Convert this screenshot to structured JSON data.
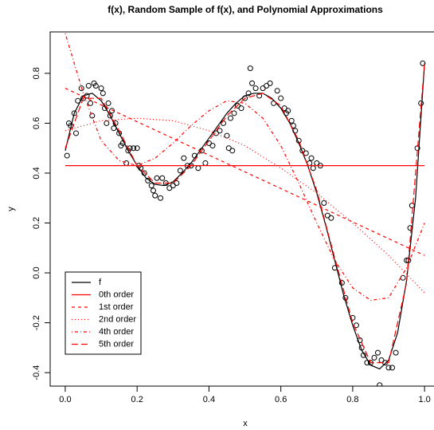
{
  "chart_data": {
    "type": "line",
    "title": "f(x), Random Sample of f(x), and Polynomial Approximations",
    "x_label": "x",
    "y_label": "y",
    "xlim": [
      -0.042,
      1.044
    ],
    "ylim": [
      -0.454,
      0.966
    ],
    "xticks": [
      {
        "value": 0,
        "label": "0.0"
      },
      0.2,
      0.4,
      0.6,
      0.8,
      {
        "value": 1,
        "label": "1.0"
      }
    ],
    "yticks": [
      -0.4,
      -0.2,
      {
        "value": 0,
        "label": "0.0"
      },
      0.2,
      0.4,
      0.6,
      0.8
    ],
    "legend": "bottom-left",
    "scatter": {
      "color": "#000000",
      "x": [
        0.005,
        0.01,
        0.015,
        0.025,
        0.03,
        0.035,
        0.045,
        0.05,
        0.06,
        0.065,
        0.07,
        0.075,
        0.08,
        0.085,
        0.1,
        0.105,
        0.11,
        0.115,
        0.12,
        0.125,
        0.13,
        0.135,
        0.14,
        0.15,
        0.155,
        0.16,
        0.17,
        0.175,
        0.18,
        0.19,
        0.2,
        0.205,
        0.21,
        0.22,
        0.23,
        0.24,
        0.245,
        0.25,
        0.255,
        0.265,
        0.27,
        0.28,
        0.29,
        0.3,
        0.31,
        0.32,
        0.33,
        0.34,
        0.35,
        0.36,
        0.37,
        0.38,
        0.39,
        0.4,
        0.41,
        0.42,
        0.43,
        0.44,
        0.45,
        0.455,
        0.46,
        0.465,
        0.47,
        0.48,
        0.49,
        0.5,
        0.51,
        0.515,
        0.52,
        0.53,
        0.54,
        0.55,
        0.56,
        0.57,
        0.58,
        0.59,
        0.6,
        0.61,
        0.615,
        0.62,
        0.63,
        0.635,
        0.64,
        0.65,
        0.66,
        0.67,
        0.68,
        0.685,
        0.69,
        0.7,
        0.71,
        0.72,
        0.73,
        0.74,
        0.75,
        0.77,
        0.78,
        0.8,
        0.81,
        0.82,
        0.825,
        0.83,
        0.84,
        0.85,
        0.86,
        0.87,
        0.875,
        0.88,
        0.89,
        0.9,
        0.91,
        0.92,
        0.94,
        0.95,
        0.955,
        0.96,
        0.965,
        0.98,
        0.99,
        0.995
      ],
      "values": [
        0.47,
        0.6,
        0.59,
        0.64,
        0.56,
        0.69,
        0.74,
        0.7,
        0.71,
        0.75,
        0.68,
        0.63,
        0.76,
        0.75,
        0.74,
        0.72,
        0.66,
        0.6,
        0.68,
        0.63,
        0.65,
        0.58,
        0.6,
        0.56,
        0.51,
        0.52,
        0.44,
        0.49,
        0.5,
        0.5,
        0.5,
        0.43,
        0.42,
        0.4,
        0.37,
        0.35,
        0.33,
        0.31,
        0.38,
        0.3,
        0.38,
        0.36,
        0.34,
        0.35,
        0.36,
        0.41,
        0.46,
        0.43,
        0.43,
        0.47,
        0.42,
        0.49,
        0.44,
        0.52,
        0.51,
        0.56,
        0.57,
        0.6,
        0.55,
        0.5,
        0.62,
        0.49,
        0.64,
        0.67,
        0.66,
        0.7,
        0.72,
        0.82,
        0.76,
        0.74,
        0.71,
        0.74,
        0.75,
        0.76,
        0.68,
        0.73,
        0.7,
        0.66,
        0.64,
        0.65,
        0.61,
        0.59,
        0.57,
        0.53,
        0.49,
        0.48,
        0.44,
        0.46,
        0.42,
        0.44,
        0.43,
        0.28,
        0.23,
        0.22,
        0.02,
        -0.04,
        -0.1,
        -0.18,
        -0.21,
        -0.27,
        -0.3,
        -0.33,
        -0.36,
        -0.36,
        -0.34,
        -0.32,
        -0.45,
        -0.35,
        -0.36,
        -0.38,
        -0.38,
        -0.32,
        -0.02,
        0.05,
        0.05,
        0.18,
        0.27,
        0.5,
        0.68,
        0.84
      ]
    },
    "series": [
      {
        "name": "f",
        "color": "#000000",
        "dash": "solid",
        "x": [
          0,
          0.025,
          0.05,
          0.075,
          0.1,
          0.125,
          0.15,
          0.175,
          0.2,
          0.225,
          0.25,
          0.275,
          0.3,
          0.325,
          0.35,
          0.375,
          0.4,
          0.425,
          0.45,
          0.475,
          0.5,
          0.525,
          0.55,
          0.575,
          0.6,
          0.625,
          0.65,
          0.675,
          0.7,
          0.725,
          0.75,
          0.775,
          0.8,
          0.825,
          0.85,
          0.875,
          0.9,
          0.925,
          0.95,
          0.975,
          1.0
        ],
        "values": [
          0.49,
          0.64,
          0.71,
          0.72,
          0.69,
          0.63,
          0.56,
          0.49,
          0.43,
          0.38,
          0.355,
          0.35,
          0.365,
          0.4,
          0.44,
          0.49,
          0.54,
          0.59,
          0.64,
          0.68,
          0.71,
          0.72,
          0.72,
          0.7,
          0.66,
          0.6,
          0.52,
          0.43,
          0.32,
          0.19,
          0.05,
          -0.09,
          -0.21,
          -0.31,
          -0.37,
          -0.385,
          -0.35,
          -0.24,
          -0.03,
          0.3,
          0.84
        ]
      },
      {
        "name": "0th order",
        "color": "#ff0000",
        "dash": "solid",
        "x": [
          0,
          1
        ],
        "values": [
          0.43,
          0.43
        ]
      },
      {
        "name": "1st order",
        "color": "#ff0000",
        "dash": "dashed",
        "x": [
          0,
          1
        ],
        "values": [
          0.74,
          0.07
        ]
      },
      {
        "name": "2nd order",
        "color": "#ff0000",
        "dash": "dotted",
        "x": [
          0,
          0.1,
          0.2,
          0.3,
          0.4,
          0.5,
          0.6,
          0.7,
          0.8,
          0.9,
          1.0
        ],
        "values": [
          0.57,
          0.61,
          0.62,
          0.61,
          0.57,
          0.51,
          0.42,
          0.32,
          0.2,
          0.07,
          -0.08
        ]
      },
      {
        "name": "4th order",
        "color": "#ff0000",
        "dash": "dotdash",
        "x": [
          0,
          0.05,
          0.1,
          0.15,
          0.2,
          0.25,
          0.3,
          0.35,
          0.4,
          0.45,
          0.5,
          0.55,
          0.6,
          0.65,
          0.7,
          0.75,
          0.8,
          0.85,
          0.9,
          0.95,
          1.0
        ],
        "values": [
          0.96,
          0.72,
          0.53,
          0.45,
          0.43,
          0.46,
          0.52,
          0.59,
          0.65,
          0.69,
          0.68,
          0.62,
          0.51,
          0.36,
          0.2,
          0.05,
          -0.06,
          -0.11,
          -0.1,
          0.02,
          0.2
        ]
      },
      {
        "name": "5th order",
        "color": "#ff0000",
        "dash": "longdash",
        "x": [
          0,
          0.05,
          0.1,
          0.15,
          0.2,
          0.25,
          0.3,
          0.35,
          0.4,
          0.45,
          0.5,
          0.55,
          0.6,
          0.65,
          0.7,
          0.75,
          0.8,
          0.85,
          0.9,
          0.95,
          1.0
        ],
        "values": [
          0.5,
          0.7,
          0.7,
          0.57,
          0.43,
          0.36,
          0.36,
          0.43,
          0.53,
          0.63,
          0.7,
          0.72,
          0.67,
          0.53,
          0.33,
          0.06,
          -0.2,
          -0.36,
          -0.36,
          -0.04,
          0.84
        ]
      }
    ]
  }
}
